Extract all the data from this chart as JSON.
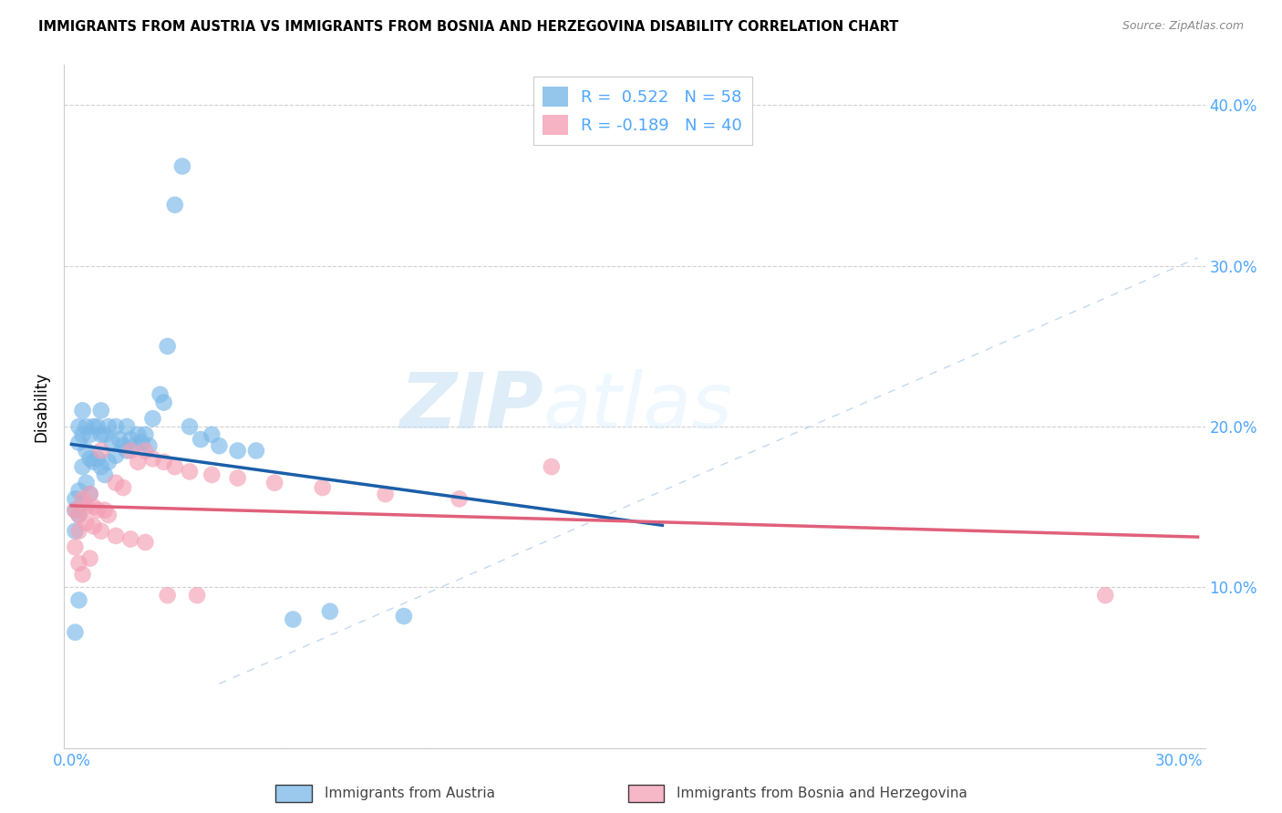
{
  "title": "IMMIGRANTS FROM AUSTRIA VS IMMIGRANTS FROM BOSNIA AND HERZEGOVINA DISABILITY CORRELATION CHART",
  "source": "Source: ZipAtlas.com",
  "ylabel": "Disability",
  "blue_color": "#7ab8e8",
  "pink_color": "#f4a0b5",
  "blue_line_color": "#1a5fa8",
  "pink_line_color": "#e0607a",
  "legend_R1": "0.522",
  "legend_N1": "58",
  "legend_R2": "-0.189",
  "legend_N2": "40",
  "legend_label1": "Immigrants from Austria",
  "legend_label2": "Immigrants from Bosnia and Herzegovina",
  "watermark_zip": "ZIP",
  "watermark_atlas": "atlas",
  "blue_x": [
    0.001,
    0.001,
    0.001,
    0.001,
    0.002,
    0.002,
    0.002,
    0.002,
    0.002,
    0.003,
    0.003,
    0.003,
    0.003,
    0.004,
    0.004,
    0.004,
    0.005,
    0.005,
    0.005,
    0.006,
    0.006,
    0.007,
    0.007,
    0.008,
    0.008,
    0.008,
    0.009,
    0.009,
    0.01,
    0.01,
    0.011,
    0.012,
    0.012,
    0.013,
    0.014,
    0.015,
    0.015,
    0.016,
    0.017,
    0.018,
    0.019,
    0.02,
    0.021,
    0.022,
    0.024,
    0.025,
    0.026,
    0.028,
    0.03,
    0.032,
    0.035,
    0.038,
    0.04,
    0.045,
    0.05,
    0.06,
    0.07,
    0.09
  ],
  "blue_y": [
    0.155,
    0.148,
    0.135,
    0.072,
    0.2,
    0.19,
    0.16,
    0.145,
    0.092,
    0.21,
    0.195,
    0.175,
    0.152,
    0.2,
    0.185,
    0.165,
    0.195,
    0.18,
    0.158,
    0.2,
    0.178,
    0.2,
    0.18,
    0.21,
    0.195,
    0.175,
    0.195,
    0.17,
    0.2,
    0.178,
    0.19,
    0.2,
    0.182,
    0.192,
    0.188,
    0.2,
    0.185,
    0.192,
    0.188,
    0.195,
    0.19,
    0.195,
    0.188,
    0.205,
    0.22,
    0.215,
    0.25,
    0.338,
    0.362,
    0.2,
    0.192,
    0.195,
    0.188,
    0.185,
    0.185,
    0.08,
    0.085,
    0.082
  ],
  "pink_x": [
    0.001,
    0.001,
    0.002,
    0.002,
    0.003,
    0.003,
    0.004,
    0.005,
    0.005,
    0.006,
    0.007,
    0.008,
    0.009,
    0.01,
    0.012,
    0.014,
    0.016,
    0.018,
    0.02,
    0.022,
    0.025,
    0.028,
    0.032,
    0.038,
    0.045,
    0.055,
    0.068,
    0.085,
    0.105,
    0.13,
    0.002,
    0.004,
    0.006,
    0.008,
    0.012,
    0.016,
    0.02,
    0.026,
    0.034,
    0.28
  ],
  "pink_y": [
    0.148,
    0.125,
    0.145,
    0.115,
    0.155,
    0.108,
    0.15,
    0.158,
    0.118,
    0.15,
    0.148,
    0.185,
    0.148,
    0.145,
    0.165,
    0.162,
    0.185,
    0.178,
    0.185,
    0.18,
    0.178,
    0.175,
    0.172,
    0.17,
    0.168,
    0.165,
    0.162,
    0.158,
    0.155,
    0.175,
    0.135,
    0.14,
    0.138,
    0.135,
    0.132,
    0.13,
    0.128,
    0.095,
    0.095,
    0.095
  ]
}
